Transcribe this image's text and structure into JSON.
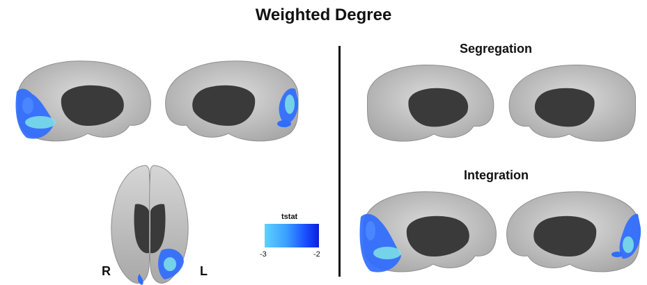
{
  "title": "Weighted Degree",
  "panels": {
    "segregation_label": "Segregation",
    "integration_label": "Integration"
  },
  "hemisphere_labels": {
    "right": "R",
    "left": "L"
  },
  "colorbar": {
    "label": "tstat",
    "min_label": "-3",
    "max_label": "-2",
    "colors": [
      "#5fd0ff",
      "#3aa0ff",
      "#1a4fff",
      "#0a1fd8"
    ]
  },
  "colors": {
    "cortex": "#c9c9c9",
    "medial_wall": "#3a3a3a",
    "activation": "#2f6cff",
    "activation_peak": "#7fe3e6"
  }
}
